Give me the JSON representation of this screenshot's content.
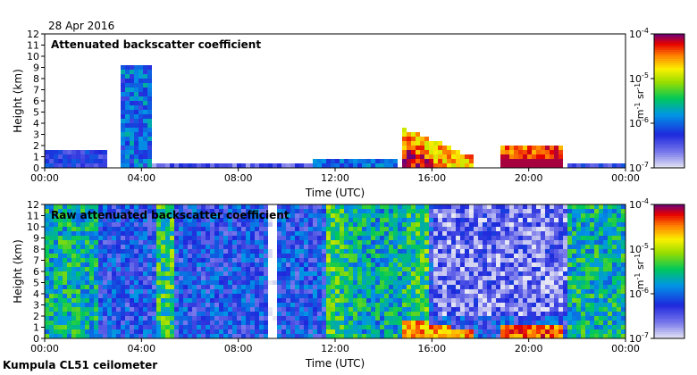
{
  "date": "28 Apr 2016",
  "footer": "Kumpula CL51 ceilometer",
  "chart_data": [
    {
      "type": "heatmap",
      "title": "Attenuated backscatter coefficient",
      "xlabel": "Time (UTC)",
      "ylabel": "Height (km)",
      "xticks": [
        "00:00",
        "04:00",
        "08:00",
        "12:00",
        "16:00",
        "20:00",
        "00:00"
      ],
      "yticks": [
        "0",
        "1",
        "2",
        "3",
        "4",
        "5",
        "6",
        "7",
        "8",
        "9",
        "10",
        "11",
        "12"
      ],
      "xlim": [
        0,
        24
      ],
      "ylim": [
        0,
        12
      ],
      "colorbar": {
        "scale": "log",
        "ticks": [
          "10",
          "10",
          "10",
          "10"
        ],
        "exponents": [
          "-7",
          "-6",
          "-5",
          "-4"
        ],
        "label": "m",
        "label_exp": "-1",
        "label2": "sr",
        "label2_exp": "-1"
      },
      "features": [
        {
          "name": "night boundary layer",
          "hour_start": 0,
          "hour_end": 2.5,
          "height_top": 1.8,
          "level": -6.3
        },
        {
          "name": "column",
          "hour_start": 3.1,
          "hour_end": 4.4,
          "height_top": 9.3,
          "level": -6.0
        },
        {
          "name": "surface layer",
          "hour_start": 4.5,
          "hour_end": 14.5,
          "height_top": 0.8,
          "level": -6.4
        },
        {
          "name": "cloud base",
          "hour_start": 14.7,
          "hour_end": 17.6,
          "height_top": 3.8,
          "level": -4.3
        },
        {
          "name": "cloud base",
          "hour_start": 18.8,
          "hour_end": 21.3,
          "height_top": 2.4,
          "level": -4.2
        }
      ]
    },
    {
      "type": "heatmap",
      "title": "Raw attenuated backscatter coefficient",
      "xlabel": "Time (UTC)",
      "ylabel": "Height (km)",
      "xticks": [
        "00:00",
        "04:00",
        "08:00",
        "12:00",
        "16:00",
        "20:00",
        "00:00"
      ],
      "yticks": [
        "0",
        "1",
        "2",
        "3",
        "4",
        "5",
        "6",
        "7",
        "8",
        "9",
        "10",
        "11",
        "12"
      ],
      "xlim": [
        0,
        24
      ],
      "ylim": [
        0,
        12
      ],
      "colorbar": {
        "scale": "log",
        "ticks": [
          "10",
          "10",
          "10",
          "10"
        ],
        "exponents": [
          "-7",
          "-6",
          "-5",
          "-4"
        ],
        "label": "m",
        "label_exp": "-1",
        "label2": "sr",
        "label2_exp": "-1"
      },
      "features": [
        {
          "name": "noise day",
          "hour_start": 11.5,
          "hour_end": 15.5,
          "height_top": 12,
          "level": -5.3
        },
        {
          "name": "noise night",
          "hour_start": 0,
          "hour_end": 2.5,
          "height_top": 12,
          "level": -5.9
        },
        {
          "name": "cloud base",
          "hour_start": 14.7,
          "hour_end": 17.6,
          "height_top": 2.0,
          "level": -4.3
        },
        {
          "name": "cloud base",
          "hour_start": 18.8,
          "hour_end": 21.3,
          "height_top": 1.6,
          "level": -4.2
        }
      ]
    }
  ]
}
